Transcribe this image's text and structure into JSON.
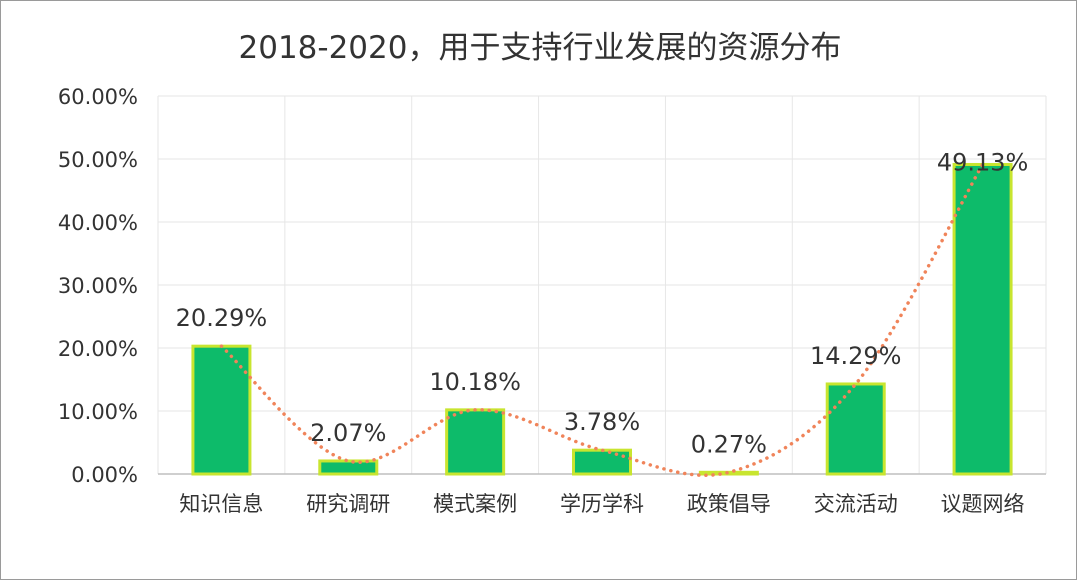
{
  "chart_data": {
    "type": "bar",
    "title": "2018-2020，用于支持行业发展的资源分布",
    "xlabel": "",
    "ylabel": "",
    "categories": [
      "知识信息",
      "研究调研",
      "模式案例",
      "学历学科",
      "政策倡导",
      "交流活动",
      "议题网络"
    ],
    "values": [
      20.29,
      2.07,
      10.18,
      3.78,
      0.27,
      14.29,
      49.13
    ],
    "value_labels": [
      "20.29%",
      "2.07%",
      "10.18%",
      "3.78%",
      "0.27%",
      "14.29%",
      "49.13%"
    ],
    "ylim": [
      0,
      60
    ],
    "yticks": [
      0,
      10,
      20,
      30,
      40,
      50,
      60
    ],
    "ytick_labels": [
      "0.00%",
      "10.00%",
      "20.00%",
      "30.00%",
      "40.00%",
      "50.00%",
      "60.00%"
    ],
    "grid": true,
    "legend": "none",
    "trendline": "smooth dotted curve through bar tops",
    "colors": {
      "bar_fill": "#0dbb6a",
      "bar_stroke": "#c8e52f",
      "trendline": "#f0845a",
      "grid": "#e6e6e6",
      "axis": "#bfbfbf"
    }
  }
}
